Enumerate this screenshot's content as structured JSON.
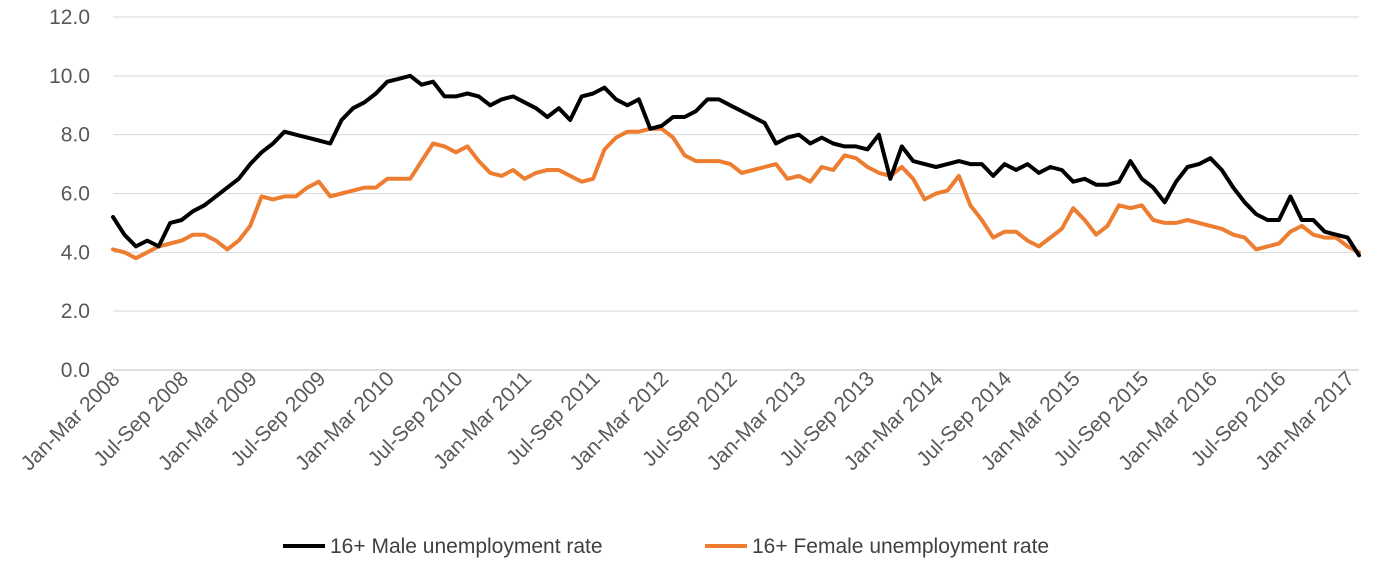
{
  "chart_data": {
    "type": "line",
    "title": "",
    "xlabel": "",
    "ylabel": "",
    "ylim": [
      0,
      12
    ],
    "yticks": [
      "0.0",
      "2.0",
      "4.0",
      "6.0",
      "8.0",
      "10.0",
      "12.0"
    ],
    "grid": true,
    "legend_position": "bottom",
    "x_tick_labels": [
      "Jan-Mar 2008",
      "Jul-Sep 2008",
      "Jan-Mar 2009",
      "Jul-Sep 2009",
      "Jan-Mar 2010",
      "Jul-Sep 2010",
      "Jan-Mar 2011",
      "Jul-Sep 2011",
      "Jan-Mar 2012",
      "Jul-Sep 2012",
      "Jan-Mar 2013",
      "Jul-Sep 2013",
      "Jan-Mar 2014",
      "Jul-Sep 2014",
      "Jan-Mar 2015",
      "Jul-Sep 2015",
      "Jan-Mar 2016",
      "Jul-Sep 2016",
      "Jan-Mar 2017"
    ],
    "series": [
      {
        "name": "16+ Male unemployment rate",
        "color": "#000000",
        "values": [
          5.2,
          4.6,
          4.2,
          4.4,
          4.2,
          5.0,
          5.1,
          5.4,
          5.6,
          5.9,
          6.2,
          6.5,
          7.0,
          7.4,
          7.7,
          8.1,
          8.0,
          7.9,
          7.8,
          7.7,
          8.5,
          8.9,
          9.1,
          9.4,
          9.8,
          9.9,
          10.0,
          9.7,
          9.8,
          9.3,
          9.3,
          9.4,
          9.3,
          9.0,
          9.2,
          9.3,
          9.1,
          8.9,
          8.6,
          8.9,
          8.5,
          9.3,
          9.4,
          9.6,
          9.2,
          9.0,
          9.2,
          8.2,
          8.3,
          8.6,
          8.6,
          8.8,
          9.2,
          9.2,
          9.0,
          8.8,
          8.6,
          8.4,
          7.7,
          7.9,
          8.0,
          7.7,
          7.9,
          7.7,
          7.6,
          7.6,
          7.5,
          8.0,
          6.5,
          7.6,
          7.1,
          7.0,
          6.9,
          7.0,
          7.1,
          7.0,
          7.0,
          6.6,
          7.0,
          6.8,
          7.0,
          6.7,
          6.9,
          6.8,
          6.4,
          6.5,
          6.3,
          6.3,
          6.4,
          7.1,
          6.5,
          6.2,
          5.7,
          6.4,
          6.9,
          7.0,
          7.2,
          6.8,
          6.2,
          5.7,
          5.3,
          5.1,
          5.1,
          5.9,
          5.1,
          5.1,
          4.7,
          4.6,
          4.5,
          3.9
        ]
      },
      {
        "name": "16+ Female unemployment rate",
        "color": "#ed7d31",
        "values": [
          4.1,
          4.0,
          3.8,
          4.0,
          4.2,
          4.3,
          4.4,
          4.6,
          4.6,
          4.4,
          4.1,
          4.4,
          4.9,
          5.9,
          5.8,
          5.9,
          5.9,
          6.2,
          6.4,
          5.9,
          6.0,
          6.1,
          6.2,
          6.2,
          6.5,
          6.5,
          6.5,
          7.1,
          7.7,
          7.6,
          7.4,
          7.6,
          7.1,
          6.7,
          6.6,
          6.8,
          6.5,
          6.7,
          6.8,
          6.8,
          6.6,
          6.4,
          6.5,
          7.5,
          7.9,
          8.1,
          8.1,
          8.2,
          8.2,
          7.9,
          7.3,
          7.1,
          7.1,
          7.1,
          7.0,
          6.7,
          6.8,
          6.9,
          7.0,
          6.5,
          6.6,
          6.4,
          6.9,
          6.8,
          7.3,
          7.2,
          6.9,
          6.7,
          6.6,
          6.9,
          6.5,
          5.8,
          6.0,
          6.1,
          6.6,
          5.6,
          5.1,
          4.5,
          4.7,
          4.7,
          4.4,
          4.2,
          4.5,
          4.8,
          5.5,
          5.1,
          4.6,
          4.9,
          5.6,
          5.5,
          5.6,
          5.1,
          5.0,
          5.0,
          5.1,
          5.0,
          4.9,
          4.8,
          4.6,
          4.5,
          4.1,
          4.2,
          4.3,
          4.7,
          4.9,
          4.6,
          4.5,
          4.5,
          4.2,
          4.0
        ]
      }
    ]
  },
  "legend": {
    "male_label": "16+ Male unemployment rate",
    "female_label": "16+ Female unemployment rate"
  }
}
